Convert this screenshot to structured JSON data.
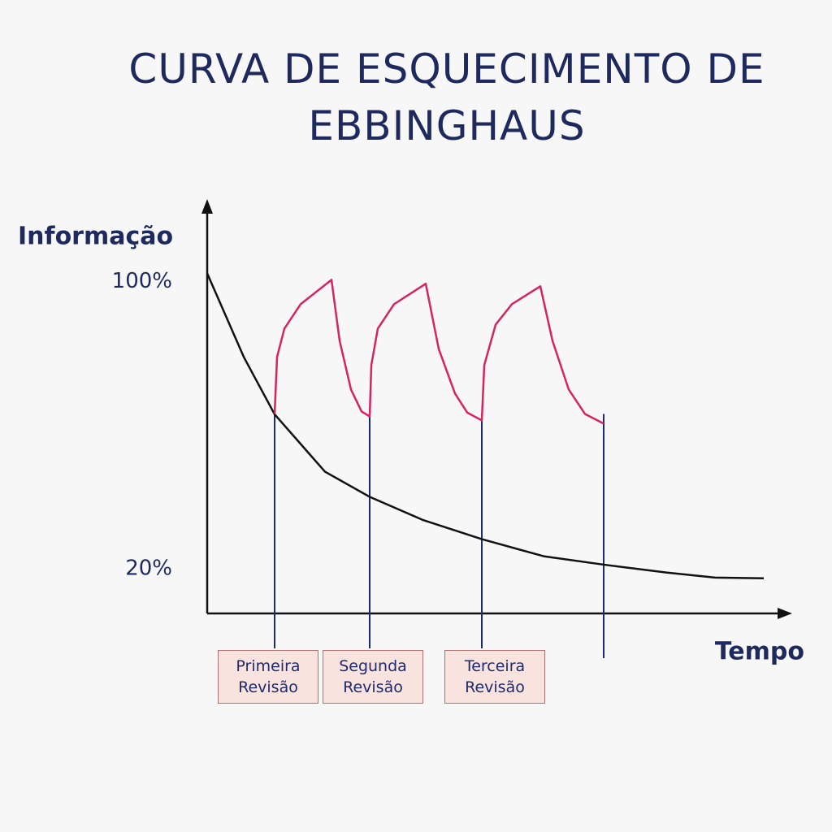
{
  "chart_data": {
    "type": "line",
    "title": "CURVA DE ESQUECIMENTO DE EBBINGHAUS",
    "y_label": "Informação",
    "x_label": "Tempo",
    "xlim": [
      0,
      72
    ],
    "ylim": [
      7.5,
      123
    ],
    "yticks": [
      {
        "value": 100,
        "label": "100%"
      },
      {
        "value": 20,
        "label": "20%"
      }
    ],
    "series": [
      {
        "color": "#111111",
        "x": [
          0,
          4.5,
          8.3,
          14.5,
          20,
          26.5,
          33.8,
          41.5,
          48.8,
          56.5,
          62.5,
          68.5
        ],
        "values": [
          102.3,
          79,
          63,
          47,
          40,
          33.6,
          28.2,
          23.4,
          21.1,
          18.9,
          17.5,
          17.3
        ]
      },
      {
        "color": "#d6245f",
        "x": [
          8.3,
          8.6,
          9.5,
          11.5,
          15.3,
          16.3,
          17.7,
          19,
          20,
          20.2,
          21,
          23,
          26.9,
          28.5,
          30.5,
          32,
          33.8,
          34.1,
          35.5,
          37.5,
          41,
          42.5,
          44.5,
          46.5,
          48.8
        ],
        "values": [
          63.1,
          79,
          86.9,
          93.7,
          100.5,
          83.5,
          69.9,
          63.8,
          62.4,
          76.7,
          86.9,
          93.7,
          99.4,
          81.2,
          68.8,
          63.5,
          61.3,
          76.7,
          88,
          93.7,
          98.7,
          83.5,
          69.9,
          63.1,
          60.4
        ]
      }
    ],
    "review_color": "#1e2a6e",
    "review_x": [
      8.3,
      20,
      33.8,
      48.8
    ],
    "review_labels": [
      "Primeira Revisão",
      "Segunda Revisão",
      "Terceira Revisão",
      null
    ]
  }
}
